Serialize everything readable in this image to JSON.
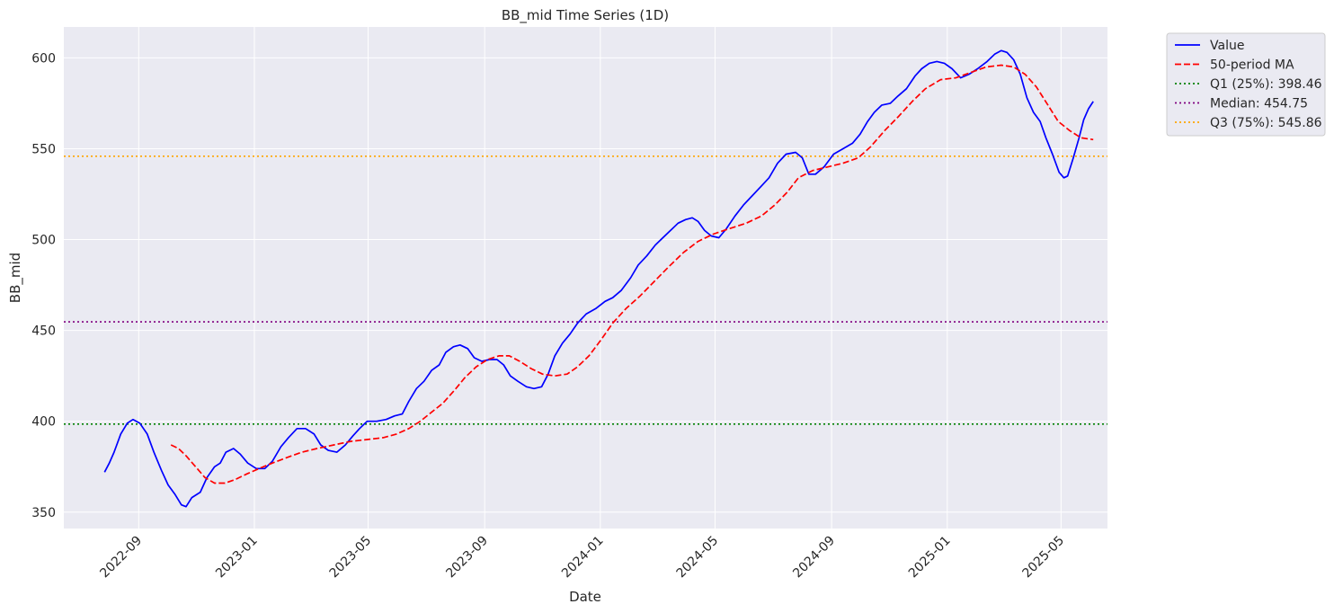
{
  "chart_data": {
    "type": "line",
    "title": "BB_mid Time Series (1D)",
    "xlabel": "Date",
    "ylabel": "BB_mid",
    "x_type": "date",
    "xlim": [
      "2022-06-14",
      "2025-06-19"
    ],
    "ylim": [
      341,
      617
    ],
    "xticks": [
      "2022-09",
      "2023-01",
      "2023-05",
      "2023-09",
      "2024-01",
      "2024-05",
      "2024-09",
      "2025-01",
      "2025-05"
    ],
    "yticks": [
      350,
      400,
      450,
      500,
      550,
      600
    ],
    "grid": true,
    "legend_position": "outside-top-right",
    "series": [
      {
        "name": "Value",
        "color": "#0000ff",
        "style": "solid",
        "points": [
          [
            "2022-07-27",
            372
          ],
          [
            "2022-08-01",
            377
          ],
          [
            "2022-08-06",
            383
          ],
          [
            "2022-08-13",
            393
          ],
          [
            "2022-08-20",
            399
          ],
          [
            "2022-08-26",
            401
          ],
          [
            "2022-09-02",
            399
          ],
          [
            "2022-09-10",
            393
          ],
          [
            "2022-09-17",
            383
          ],
          [
            "2022-09-25",
            373
          ],
          [
            "2022-10-02",
            365
          ],
          [
            "2022-10-09",
            360
          ],
          [
            "2022-10-16",
            354
          ],
          [
            "2022-10-21",
            353
          ],
          [
            "2022-10-27",
            358
          ],
          [
            "2022-11-05",
            361
          ],
          [
            "2022-11-12",
            369
          ],
          [
            "2022-11-20",
            375
          ],
          [
            "2022-11-26",
            377
          ],
          [
            "2022-12-02",
            383
          ],
          [
            "2022-12-10",
            385
          ],
          [
            "2022-12-17",
            382
          ],
          [
            "2022-12-25",
            377
          ],
          [
            "2023-01-03",
            374
          ],
          [
            "2023-01-12",
            374
          ],
          [
            "2023-01-20",
            378
          ],
          [
            "2023-01-29",
            386
          ],
          [
            "2023-02-06",
            391
          ],
          [
            "2023-02-15",
            396
          ],
          [
            "2023-02-24",
            396
          ],
          [
            "2023-03-05",
            393
          ],
          [
            "2023-03-12",
            387
          ],
          [
            "2023-03-20",
            384
          ],
          [
            "2023-03-29",
            383
          ],
          [
            "2023-04-07",
            387
          ],
          [
            "2023-04-15",
            392
          ],
          [
            "2023-04-22",
            396
          ],
          [
            "2023-04-30",
            400
          ],
          [
            "2023-05-10",
            400
          ],
          [
            "2023-05-20",
            401
          ],
          [
            "2023-05-29",
            403
          ],
          [
            "2023-06-06",
            404
          ],
          [
            "2023-06-13",
            411
          ],
          [
            "2023-06-21",
            418
          ],
          [
            "2023-06-29",
            422
          ],
          [
            "2023-07-07",
            428
          ],
          [
            "2023-07-15",
            431
          ],
          [
            "2023-07-22",
            438
          ],
          [
            "2023-07-30",
            441
          ],
          [
            "2023-08-06",
            442
          ],
          [
            "2023-08-14",
            440
          ],
          [
            "2023-08-21",
            435
          ],
          [
            "2023-08-29",
            433
          ],
          [
            "2023-09-06",
            434
          ],
          [
            "2023-09-14",
            434
          ],
          [
            "2023-09-21",
            431
          ],
          [
            "2023-09-28",
            425
          ],
          [
            "2023-10-06",
            422
          ],
          [
            "2023-10-15",
            419
          ],
          [
            "2023-10-23",
            418
          ],
          [
            "2023-10-31",
            419
          ],
          [
            "2023-11-07",
            426
          ],
          [
            "2023-11-14",
            436
          ],
          [
            "2023-11-22",
            443
          ],
          [
            "2023-11-30",
            448
          ],
          [
            "2023-12-08",
            454
          ],
          [
            "2023-12-17",
            459
          ],
          [
            "2023-12-27",
            462
          ],
          [
            "2024-01-06",
            466
          ],
          [
            "2024-01-14",
            468
          ],
          [
            "2024-01-23",
            472
          ],
          [
            "2024-02-02",
            479
          ],
          [
            "2024-02-10",
            486
          ],
          [
            "2024-02-19",
            491
          ],
          [
            "2024-02-28",
            497
          ],
          [
            "2024-03-07",
            501
          ],
          [
            "2024-03-15",
            505
          ],
          [
            "2024-03-23",
            509
          ],
          [
            "2024-03-31",
            511
          ],
          [
            "2024-04-07",
            512
          ],
          [
            "2024-04-13",
            510
          ],
          [
            "2024-04-20",
            505
          ],
          [
            "2024-04-27",
            502
          ],
          [
            "2024-05-05",
            501
          ],
          [
            "2024-05-13",
            506
          ],
          [
            "2024-05-22",
            513
          ],
          [
            "2024-05-31",
            519
          ],
          [
            "2024-06-09",
            524
          ],
          [
            "2024-06-18",
            529
          ],
          [
            "2024-06-27",
            534
          ],
          [
            "2024-07-06",
            542
          ],
          [
            "2024-07-15",
            547
          ],
          [
            "2024-07-25",
            548
          ],
          [
            "2024-08-01",
            545
          ],
          [
            "2024-08-08",
            536
          ],
          [
            "2024-08-15",
            536
          ],
          [
            "2024-08-24",
            540
          ],
          [
            "2024-09-03",
            547
          ],
          [
            "2024-09-13",
            550
          ],
          [
            "2024-09-23",
            553
          ],
          [
            "2024-10-01",
            558
          ],
          [
            "2024-10-09",
            565
          ],
          [
            "2024-10-16",
            570
          ],
          [
            "2024-10-24",
            574
          ],
          [
            "2024-11-02",
            575
          ],
          [
            "2024-11-10",
            579
          ],
          [
            "2024-11-19",
            583
          ],
          [
            "2024-11-28",
            590
          ],
          [
            "2024-12-05",
            594
          ],
          [
            "2024-12-13",
            597
          ],
          [
            "2024-12-21",
            598
          ],
          [
            "2024-12-29",
            597
          ],
          [
            "2025-01-06",
            594
          ],
          [
            "2025-01-15",
            589
          ],
          [
            "2025-01-24",
            591
          ],
          [
            "2025-02-02",
            594
          ],
          [
            "2025-02-12",
            598
          ],
          [
            "2025-02-20",
            602
          ],
          [
            "2025-02-27",
            604
          ],
          [
            "2025-03-05",
            603
          ],
          [
            "2025-03-12",
            599
          ],
          [
            "2025-03-19",
            591
          ],
          [
            "2025-03-26",
            578
          ],
          [
            "2025-04-02",
            570
          ],
          [
            "2025-04-09",
            565
          ],
          [
            "2025-04-15",
            556
          ],
          [
            "2025-04-22",
            547
          ],
          [
            "2025-04-29",
            537
          ],
          [
            "2025-05-04",
            534
          ],
          [
            "2025-05-08",
            535
          ],
          [
            "2025-05-14",
            545
          ],
          [
            "2025-05-20",
            556
          ],
          [
            "2025-05-25",
            566
          ],
          [
            "2025-05-30",
            572
          ],
          [
            "2025-06-04",
            576
          ]
        ]
      },
      {
        "name": "50-period MA",
        "color": "#ff0000",
        "style": "dashed",
        "points": [
          [
            "2022-10-05",
            387
          ],
          [
            "2022-10-13",
            385
          ],
          [
            "2022-10-21",
            381
          ],
          [
            "2022-10-31",
            375
          ],
          [
            "2022-11-10",
            369
          ],
          [
            "2022-11-20",
            366
          ],
          [
            "2022-12-01",
            366
          ],
          [
            "2022-12-12",
            368
          ],
          [
            "2022-12-24",
            371
          ],
          [
            "2023-01-06",
            374
          ],
          [
            "2023-01-20",
            377
          ],
          [
            "2023-02-04",
            380
          ],
          [
            "2023-02-20",
            383
          ],
          [
            "2023-03-08",
            385
          ],
          [
            "2023-03-26",
            387
          ],
          [
            "2023-04-13",
            389
          ],
          [
            "2023-05-01",
            390
          ],
          [
            "2023-05-17",
            391
          ],
          [
            "2023-05-31",
            393
          ],
          [
            "2023-06-13",
            396
          ],
          [
            "2023-06-25",
            400
          ],
          [
            "2023-07-07",
            405
          ],
          [
            "2023-07-19",
            410
          ],
          [
            "2023-07-31",
            417
          ],
          [
            "2023-08-11",
            424
          ],
          [
            "2023-08-23",
            430
          ],
          [
            "2023-09-04",
            434
          ],
          [
            "2023-09-16",
            436
          ],
          [
            "2023-09-27",
            436
          ],
          [
            "2023-10-08",
            433
          ],
          [
            "2023-10-20",
            429
          ],
          [
            "2023-11-01",
            426
          ],
          [
            "2023-11-14",
            425
          ],
          [
            "2023-11-27",
            426
          ],
          [
            "2023-12-08",
            430
          ],
          [
            "2023-12-20",
            436
          ],
          [
            "2024-01-02",
            445
          ],
          [
            "2024-01-14",
            454
          ],
          [
            "2024-01-28",
            462
          ],
          [
            "2024-02-12",
            469
          ],
          [
            "2024-02-27",
            477
          ],
          [
            "2024-03-13",
            485
          ],
          [
            "2024-03-29",
            493
          ],
          [
            "2024-04-13",
            499
          ],
          [
            "2024-04-29",
            503
          ],
          [
            "2024-05-16",
            506
          ],
          [
            "2024-06-03",
            509
          ],
          [
            "2024-06-19",
            513
          ],
          [
            "2024-07-03",
            519
          ],
          [
            "2024-07-16",
            526
          ],
          [
            "2024-07-28",
            534
          ],
          [
            "2024-08-12",
            538
          ],
          [
            "2024-08-28",
            540
          ],
          [
            "2024-09-13",
            542
          ],
          [
            "2024-09-29",
            545
          ],
          [
            "2024-10-12",
            551
          ],
          [
            "2024-10-27",
            560
          ],
          [
            "2024-11-11",
            568
          ],
          [
            "2024-11-25",
            576
          ],
          [
            "2024-12-09",
            583
          ],
          [
            "2024-12-25",
            588
          ],
          [
            "2025-01-10",
            589
          ],
          [
            "2025-01-26",
            592
          ],
          [
            "2025-02-11",
            595
          ],
          [
            "2025-02-27",
            596
          ],
          [
            "2025-03-12",
            595
          ],
          [
            "2025-03-24",
            591
          ],
          [
            "2025-04-05",
            584
          ],
          [
            "2025-04-16",
            575
          ],
          [
            "2025-04-28",
            565
          ],
          [
            "2025-05-10",
            560
          ],
          [
            "2025-05-22",
            556
          ],
          [
            "2025-06-04",
            555
          ]
        ]
      }
    ],
    "reference_lines": [
      {
        "name": "Q1 (25%): 398.46",
        "value": 398.46,
        "color": "#008000",
        "style": "dotted"
      },
      {
        "name": "Median: 454.75",
        "value": 454.75,
        "color": "#800080",
        "style": "dotted"
      },
      {
        "name": "Q3 (75%): 545.86",
        "value": 545.86,
        "color": "#ffa500",
        "style": "dotted"
      }
    ],
    "colors": {
      "plot_background": "#eaeaf2",
      "grid": "#ffffff",
      "text": "#262626"
    }
  }
}
